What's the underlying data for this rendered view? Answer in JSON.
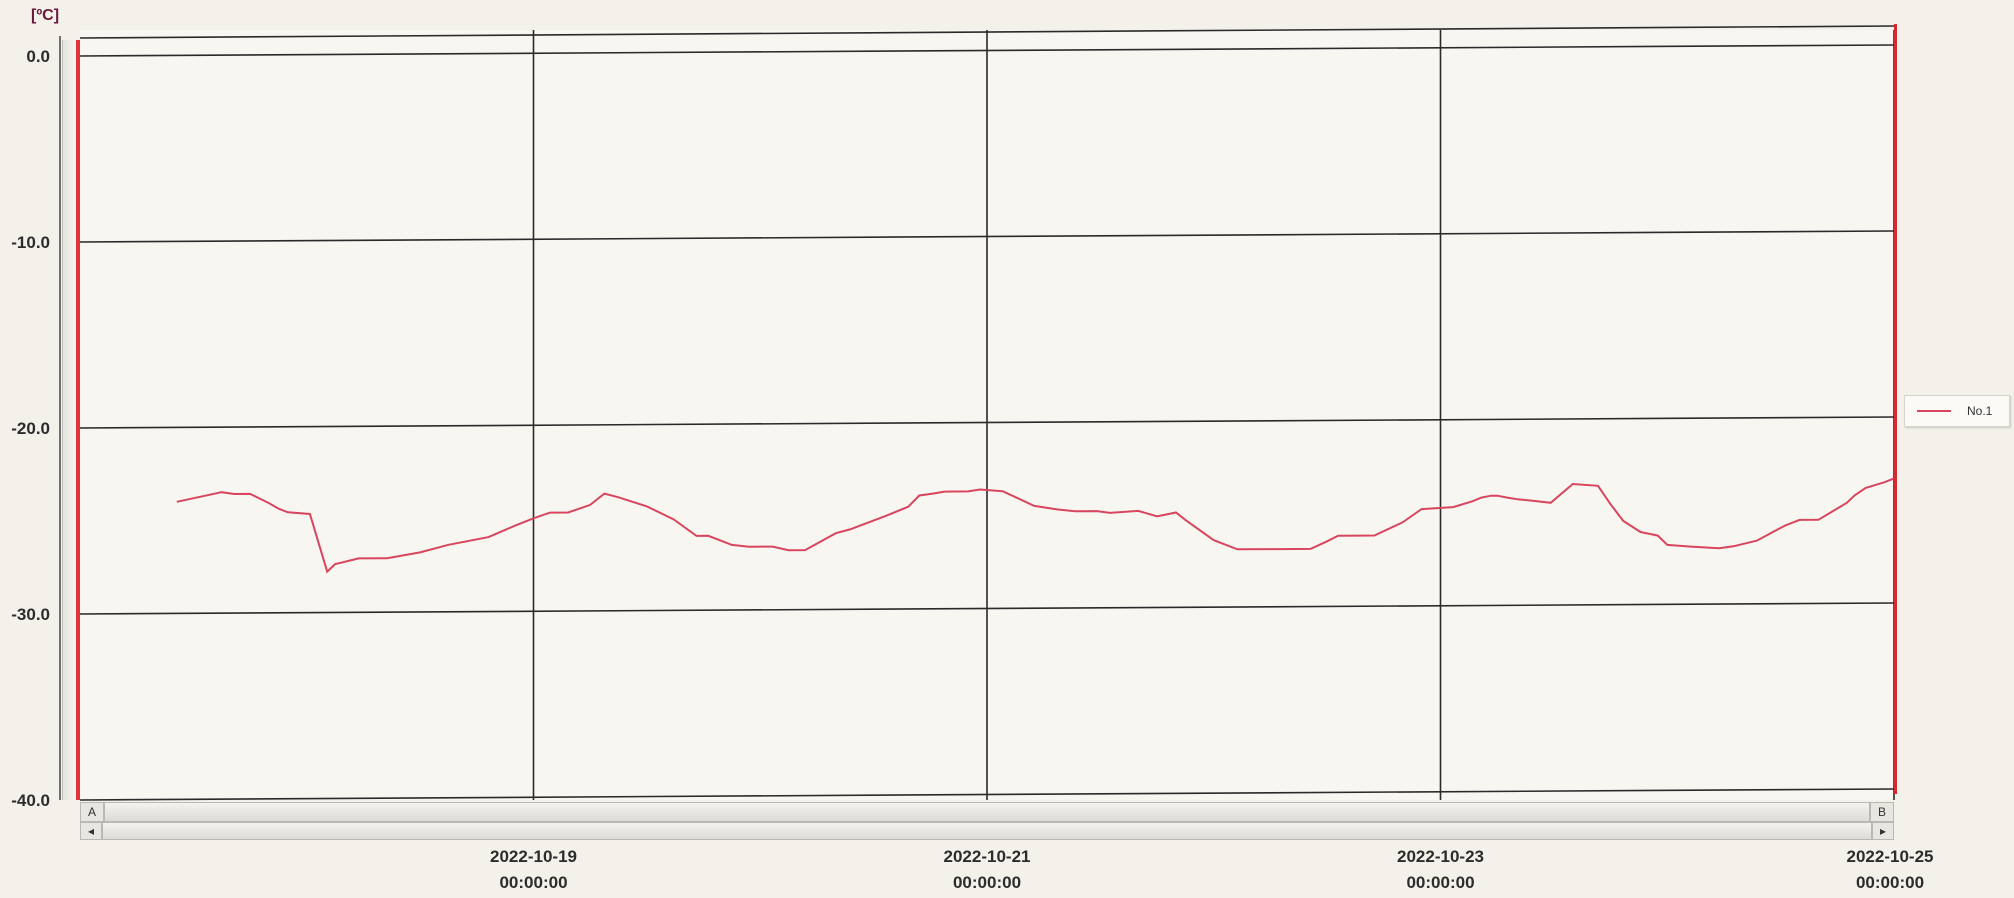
{
  "unit": "[ºC]",
  "legend": {
    "label": "No.1",
    "color": "#d8465e"
  },
  "scrollbar": {
    "marker_a": "A",
    "marker_b": "B",
    "left_arrow": "◂",
    "right_arrow": "▸"
  },
  "chart_data": {
    "type": "line",
    "ylabel": "[ºC]",
    "ylim": [
      -40,
      0
    ],
    "yticks": [
      "0.0",
      "-10.0",
      "-20.0",
      "-30.0",
      "-40.0"
    ],
    "xlim": [
      "2022-10-17 00:00",
      "2022-10-25 00:00"
    ],
    "xticks": [
      {
        "date": "2022-10-19",
        "time": "00:00:00"
      },
      {
        "date": "2022-10-21",
        "time": "00:00:00"
      },
      {
        "date": "2022-10-23",
        "time": "00:00:00"
      },
      {
        "date": "2022-10-25",
        "time": "00:00:00"
      }
    ],
    "grid": true,
    "legend_position": "right",
    "series": [
      {
        "name": "No.1",
        "color": "#d8465e",
        "x": [
          "2022-10-17 10:15",
          "2022-10-17 14:00",
          "2022-10-17 15:00",
          "2022-10-17 16:20",
          "2022-10-17 18:00",
          "2022-10-17 20:00",
          "2022-10-17 21:00",
          "2022-10-17 22:00",
          "2022-10-18 00:20",
          "2022-10-18 02:10",
          "2022-10-18 03:00",
          "2022-10-18 05:30",
          "2022-10-18 08:30",
          "2022-10-18 12:00",
          "2022-10-18 15:00",
          "2022-10-18 19:15",
          "2022-10-18 22:00",
          "2022-10-19 00:00",
          "2022-10-19 01:45",
          "2022-10-19 03:40",
          "2022-10-19 06:00",
          "2022-10-19 07:30",
          "2022-10-19 09:00",
          "2022-10-19 12:00",
          "2022-10-19 14:50",
          "2022-10-19 17:15",
          "2022-10-19 18:30",
          "2022-10-19 21:00",
          "2022-10-19 22:50",
          "2022-10-20 01:20",
          "2022-10-20 03:00",
          "2022-10-20 04:45",
          "2022-10-20 08:00",
          "2022-10-20 09:30",
          "2022-10-20 13:15",
          "2022-10-20 15:40",
          "2022-10-20 16:50",
          "2022-10-20 18:20",
          "2022-10-20 19:30",
          "2022-10-20 22:00",
          "2022-10-20 23:15",
          "2022-10-21 01:40",
          "2022-10-21 05:00",
          "2022-10-21 07:30",
          "2022-10-21 09:20",
          "2022-10-21 11:40",
          "2022-10-21 13:00",
          "2022-10-21 16:00",
          "2022-10-21 18:00",
          "2022-10-21 20:00",
          "2022-10-21 21:00",
          "2022-10-22 00:00",
          "2022-10-22 02:30",
          "2022-10-22 07:00",
          "2022-10-22 10:15",
          "2022-10-22 12:00",
          "2022-10-22 13:10",
          "2022-10-22 15:30",
          "2022-10-22 17:00",
          "2022-10-22 20:00",
          "2022-10-22 22:00",
          "2022-10-23 01:20",
          "2022-10-23 03:20",
          "2022-10-23 04:20",
          "2022-10-23 05:20",
          "2022-10-23 06:00",
          "2022-10-23 07:00",
          "2022-10-23 08:10",
          "2022-10-23 10:00",
          "2022-10-23 11:40",
          "2022-10-23 14:00",
          "2022-10-23 16:40",
          "2022-10-23 18:00",
          "2022-10-23 19:20",
          "2022-10-23 21:10",
          "2022-10-23 23:00",
          "2022-10-24 00:00",
          "2022-10-24 02:30",
          "2022-10-24 05:30",
          "2022-10-24 07:00",
          "2022-10-24 09:30",
          "2022-10-24 11:20",
          "2022-10-24 12:30",
          "2022-10-24 14:00",
          "2022-10-24 16:00",
          "2022-10-24 18:00",
          "2022-10-24 19:00",
          "2022-10-24 19:50",
          "2022-10-24 21:00",
          "2022-10-24 23:00",
          "2022-10-25 00:00"
        ],
        "y": [
          -24.0,
          -23.6,
          -23.5,
          -23.6,
          -23.6,
          -24.1,
          -24.4,
          -24.6,
          -24.7,
          -27.8,
          -27.4,
          -27.1,
          -27.1,
          -26.8,
          -26.4,
          -26.0,
          -25.4,
          -25.0,
          -24.7,
          -24.7,
          -24.3,
          -23.7,
          -23.9,
          -24.4,
          -25.1,
          -26.0,
          -26.0,
          -26.5,
          -26.6,
          -26.6,
          -26.8,
          -26.8,
          -25.9,
          -25.7,
          -25.0,
          -24.5,
          -23.9,
          -23.8,
          -23.7,
          -23.7,
          -23.6,
          -23.7,
          -24.5,
          -24.7,
          -24.8,
          -24.8,
          -24.9,
          -24.8,
          -25.1,
          -24.9,
          -25.3,
          -26.4,
          -26.9,
          -26.9,
          -26.9,
          -26.5,
          -26.2,
          -26.2,
          -26.2,
          -25.5,
          -24.8,
          -24.7,
          -24.4,
          -24.2,
          -24.1,
          -24.1,
          -24.2,
          -24.3,
          -24.4,
          -24.5,
          -23.5,
          -23.6,
          -24.6,
          -25.5,
          -26.1,
          -26.3,
          -26.8,
          -26.9,
          -27.0,
          -26.9,
          -26.6,
          -26.1,
          -25.8,
          -25.5,
          -25.5,
          -24.9,
          -24.6,
          -24.2,
          -23.8,
          -23.5,
          -23.3
        ]
      }
    ]
  }
}
